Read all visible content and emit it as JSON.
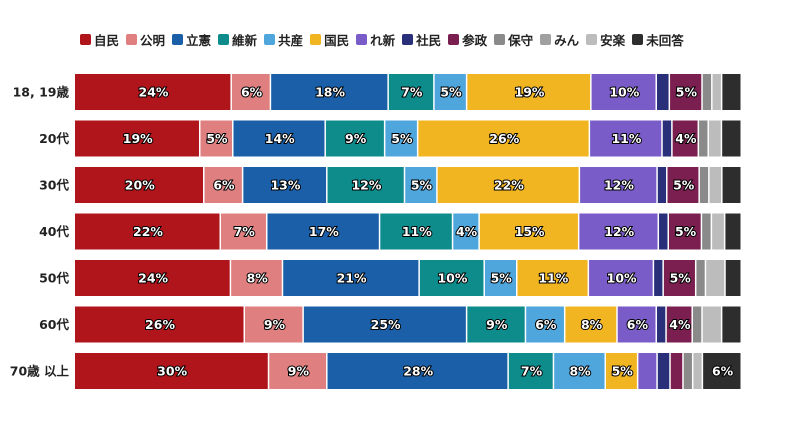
{
  "chart_data": {
    "type": "bar",
    "orientation": "horizontal",
    "stacked": true,
    "legend_position": "top",
    "grid": false,
    "categories": [
      "18, 19歳",
      "20代",
      "30代",
      "40代",
      "50代",
      "60代",
      "70歳 以上"
    ],
    "series": [
      {
        "name": "自民",
        "color": "#b0151c",
        "values": [
          24,
          19,
          20,
          22,
          24,
          26,
          30
        ]
      },
      {
        "name": "公明",
        "color": "#e07f80",
        "values": [
          6,
          5,
          6,
          7,
          8,
          9,
          9
        ]
      },
      {
        "name": "立憲",
        "color": "#1a5fa8",
        "values": [
          18,
          14,
          13,
          17,
          21,
          25,
          28
        ]
      },
      {
        "name": "維新",
        "color": "#0e8c8c",
        "values": [
          7,
          9,
          12,
          11,
          10,
          9,
          7
        ]
      },
      {
        "name": "共産",
        "color": "#4ea6dc",
        "values": [
          5,
          5,
          5,
          4,
          5,
          6,
          8
        ]
      },
      {
        "name": "国民",
        "color": "#f0b520",
        "values": [
          19,
          26,
          22,
          15,
          11,
          8,
          5
        ]
      },
      {
        "name": "れ新",
        "color": "#7a5cc8",
        "values": [
          10,
          11,
          12,
          12,
          10,
          6,
          3
        ]
      },
      {
        "name": "社民",
        "color": "#2a2f7a",
        "values": [
          2,
          1.5,
          1.5,
          1.5,
          1.5,
          1.5,
          2
        ]
      },
      {
        "name": "参政",
        "color": "#7a1f4f",
        "values": [
          5,
          4,
          5,
          5,
          5,
          4,
          2
        ]
      },
      {
        "name": "保守",
        "color": "#8a8a8a",
        "values": [
          1.5,
          1.5,
          1.5,
          1.5,
          1.5,
          1.5,
          1.5
        ]
      },
      {
        "name": "みん",
        "color": "#a0a0a0",
        "values": [
          0,
          0,
          0,
          0,
          0,
          0,
          0
        ]
      },
      {
        "name": "安楽",
        "color": "#bcbcbc",
        "values": [
          1.5,
          2,
          2,
          2,
          3,
          3,
          1.5
        ]
      },
      {
        "name": "未回答",
        "color": "#2d2d2d",
        "values": [
          3,
          3,
          3,
          2.5,
          2.5,
          3,
          6
        ]
      }
    ],
    "value_labels": [
      [
        "24%",
        "6%",
        "18%",
        "7%",
        "5%",
        "19%",
        "10%",
        "",
        "5%",
        "",
        "",
        "",
        ""
      ],
      [
        "19%",
        "5%",
        "14%",
        "9%",
        "5%",
        "26%",
        "11%",
        "",
        "4%",
        "",
        "",
        "",
        ""
      ],
      [
        "20%",
        "6%",
        "13%",
        "12%",
        "5%",
        "22%",
        "12%",
        "",
        "5%",
        "",
        "",
        "",
        ""
      ],
      [
        "22%",
        "7%",
        "17%",
        "11%",
        "4%",
        "15%",
        "12%",
        "",
        "5%",
        "",
        "",
        "",
        ""
      ],
      [
        "24%",
        "8%",
        "21%",
        "10%",
        "5%",
        "11%",
        "10%",
        "",
        "5%",
        "",
        "",
        "",
        ""
      ],
      [
        "26%",
        "9%",
        "25%",
        "9%",
        "6%",
        "8%",
        "6%",
        "",
        "4%",
        "",
        "",
        "",
        ""
      ],
      [
        "30%",
        "9%",
        "28%",
        "7%",
        "8%",
        "5%",
        "",
        "",
        "",
        "",
        "",
        "",
        "6%"
      ]
    ]
  }
}
